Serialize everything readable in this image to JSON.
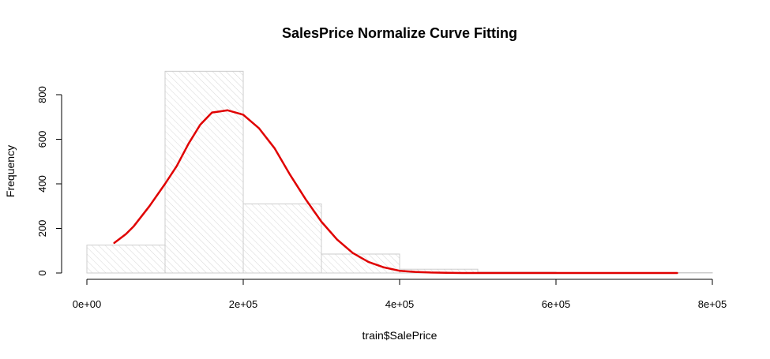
{
  "chart_data": {
    "type": "bar",
    "title": "SalesPrice Normalize Curve Fitting",
    "xlabel": "train$SalePrice",
    "ylabel": "Frequency",
    "xlim": [
      0,
      800000
    ],
    "ylim": [
      0,
      900
    ],
    "bins": [
      {
        "from": 0,
        "to": 100000,
        "count": 125
      },
      {
        "from": 100000,
        "to": 200000,
        "count": 905
      },
      {
        "from": 200000,
        "to": 300000,
        "count": 310
      },
      {
        "from": 300000,
        "to": 400000,
        "count": 85
      },
      {
        "from": 400000,
        "to": 500000,
        "count": 17
      },
      {
        "from": 500000,
        "to": 600000,
        "count": 4
      },
      {
        "from": 600000,
        "to": 700000,
        "count": 2
      },
      {
        "from": 700000,
        "to": 800000,
        "count": 2
      }
    ],
    "x_ticks": [
      {
        "value": 0,
        "label": "0e+00"
      },
      {
        "value": 200000,
        "label": "2e+05"
      },
      {
        "value": 400000,
        "label": "4e+05"
      },
      {
        "value": 600000,
        "label": "6e+05"
      },
      {
        "value": 800000,
        "label": "8e+05"
      }
    ],
    "y_ticks": [
      {
        "value": 0,
        "label": "0"
      },
      {
        "value": 200,
        "label": "200"
      },
      {
        "value": 400,
        "label": "400"
      },
      {
        "value": 600,
        "label": "600"
      },
      {
        "value": 800,
        "label": "800"
      }
    ],
    "series": [
      {
        "type": "line",
        "color": "#e00000",
        "x": [
          35000,
          50000,
          60000,
          80000,
          100000,
          115000,
          130000,
          145000,
          160000,
          170000,
          180000,
          190000,
          200000,
          220000,
          240000,
          260000,
          280000,
          300000,
          320000,
          340000,
          360000,
          380000,
          400000,
          420000,
          440000,
          460000,
          480000,
          500000,
          550000,
          600000,
          650000,
          700000,
          755000
        ],
        "y": [
          135,
          175,
          210,
          300,
          400,
          480,
          580,
          665,
          720,
          725,
          730,
          720,
          710,
          650,
          560,
          440,
          330,
          230,
          150,
          90,
          50,
          25,
          10,
          5,
          2,
          1,
          0,
          0,
          0,
          0,
          0,
          0,
          0
        ]
      }
    ],
    "colors": {
      "bar_fill": "#ffffff",
      "bar_border": "#cccccc",
      "bar_hatch": "#d6d6d6",
      "axis": "#000000"
    }
  }
}
